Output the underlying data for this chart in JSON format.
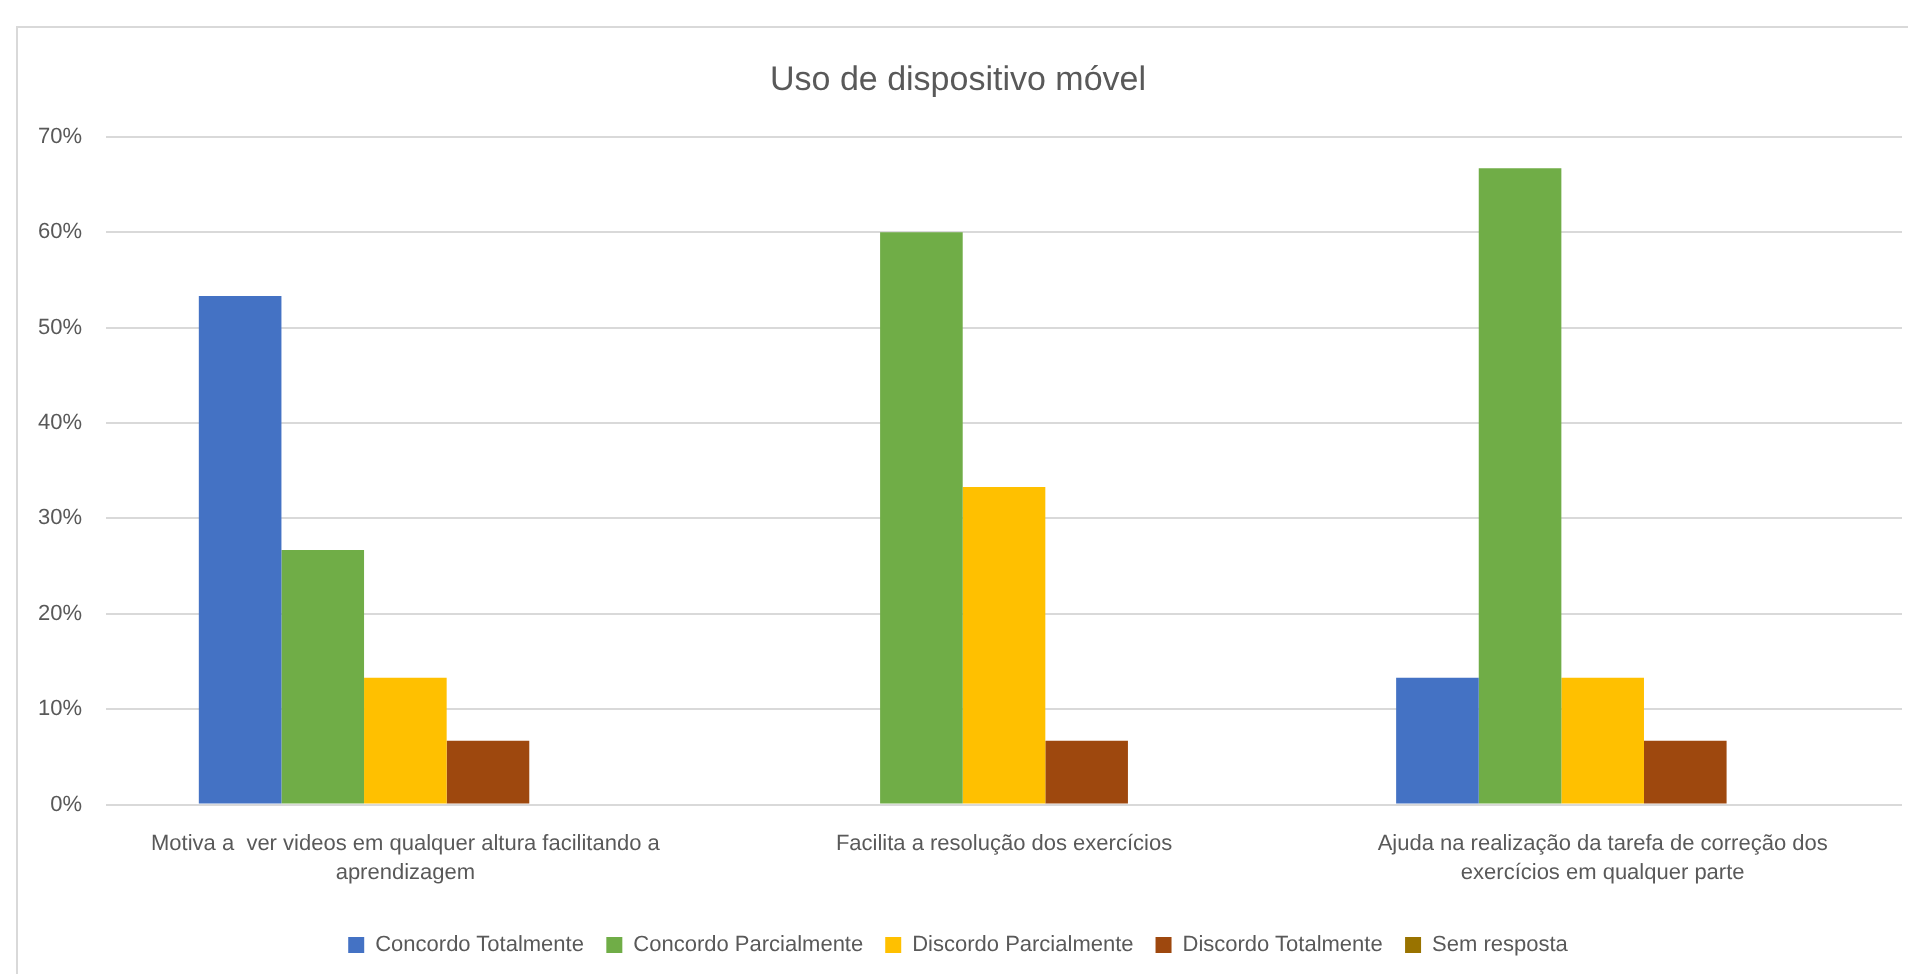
{
  "chart_data": {
    "type": "bar",
    "title": "Uso de dispositivo móvel",
    "categories": [
      "Motiva a  ver videos em qualquer altura facilitando a aprendizagem",
      "Facilita a resolução dos exercícios",
      "Ajuda na realização da tarefa de correção dos exercícios em qualquer parte"
    ],
    "series": [
      {
        "name": "Concordo Totalmente",
        "color": "#4472c4",
        "values": [
          53.3,
          0,
          13.3
        ]
      },
      {
        "name": "Concordo Parcialmente",
        "color": "#70ad47",
        "values": [
          26.7,
          60,
          66.7
        ]
      },
      {
        "name": "Discordo Parcialmente",
        "color": "#ffc000",
        "values": [
          13.3,
          33.3,
          13.3
        ]
      },
      {
        "name": "Discordo Totalmente",
        "color": "#9e480e",
        "values": [
          6.7,
          6.7,
          6.7
        ]
      },
      {
        "name": "Sem resposta",
        "color": "#997300",
        "values": [
          0,
          0,
          0
        ]
      }
    ],
    "ylim": [
      0,
      70
    ],
    "yticks": [
      {
        "value": 0,
        "label": "0%"
      },
      {
        "value": 10,
        "label": "10%"
      },
      {
        "value": 20,
        "label": "20%"
      },
      {
        "value": 30,
        "label": "30%"
      },
      {
        "value": 40,
        "label": "40%"
      },
      {
        "value": 50,
        "label": "50%"
      },
      {
        "value": 60,
        "label": "60%"
      },
      {
        "value": 70,
        "label": "70%"
      }
    ],
    "grid": "y",
    "legend": "bottom"
  }
}
